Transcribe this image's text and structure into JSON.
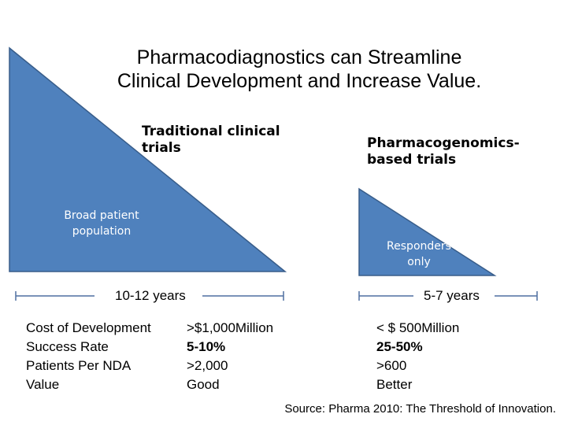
{
  "title": {
    "line1": "Pharmacodiagnostics can Streamline",
    "line2": "Clinical Development and Increase Value."
  },
  "colors": {
    "triangle_fill": "#4F81BD",
    "triangle_stroke": "#385D8A",
    "bracket": "#4F6FA0"
  },
  "traditional": {
    "label_line1": "Traditional clinical",
    "label_line2": "trials",
    "inner_line1": "Broad patient",
    "inner_line2": "population",
    "years": "10-12 years"
  },
  "pgx": {
    "label_line1": "Pharmacogenomics-",
    "label_line2": "based trials",
    "inner_line1": "Responders",
    "inner_line2": "only",
    "years": "5-7 years"
  },
  "metrics": {
    "labels": [
      "Cost of Development",
      "Success Rate",
      "Patients Per NDA",
      "Value"
    ],
    "traditional": [
      ">$1,000Million",
      "5-10%",
      ">2,000",
      "Good"
    ],
    "pgx": [
      "< $ 500Million",
      "25-50%",
      ">600",
      "Better"
    ]
  },
  "source": "Source: Pharma 2010: The Threshold of Innovation."
}
